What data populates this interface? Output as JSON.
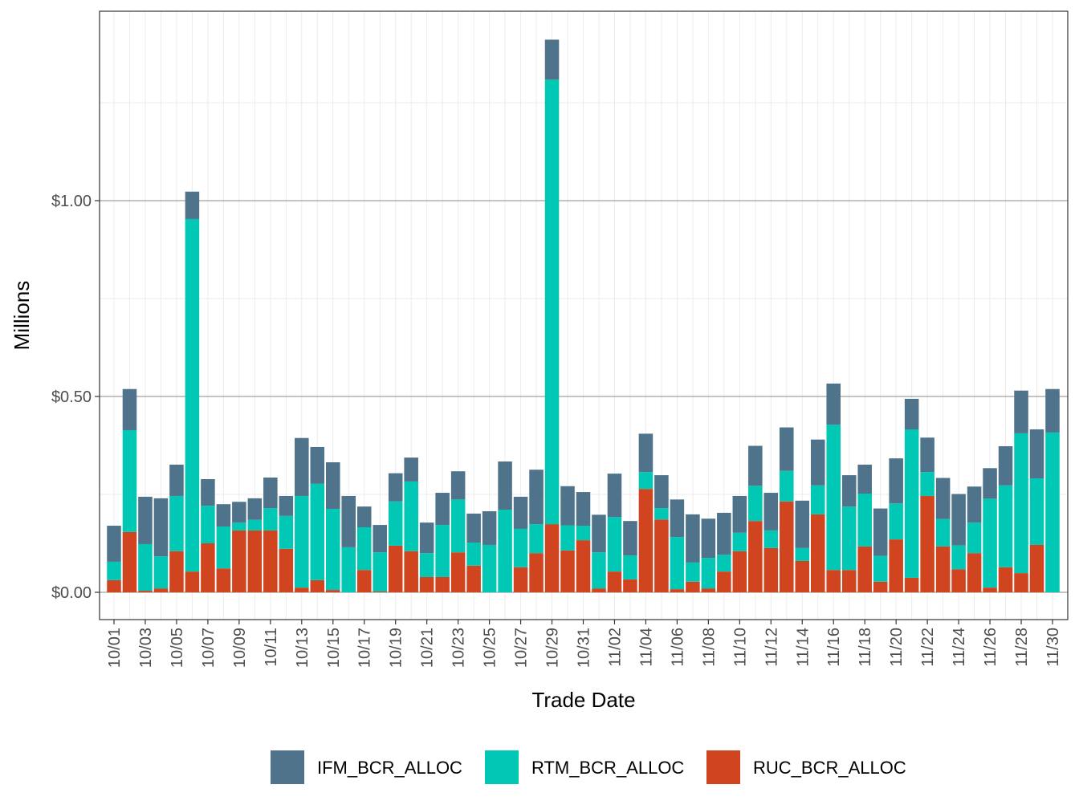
{
  "chart_data": {
    "type": "bar",
    "stacked": true,
    "xlabel": "Trade Date",
    "ylabel": "Millions",
    "ylim": [
      -0.07,
      1.485
    ],
    "y_ticks": [
      0,
      0.5,
      1.0
    ],
    "y_tick_labels": [
      "$0.00",
      "$0.50",
      "$1.00"
    ],
    "grid": true,
    "legend_position": "bottom",
    "categories": [
      "10/01",
      "10/02",
      "10/03",
      "10/04",
      "10/05",
      "10/06",
      "10/07",
      "10/08",
      "10/09",
      "10/10",
      "10/11",
      "10/12",
      "10/13",
      "10/14",
      "10/15",
      "10/16",
      "10/17",
      "10/18",
      "10/19",
      "10/20",
      "10/21",
      "10/22",
      "10/23",
      "10/24",
      "10/25",
      "10/26",
      "10/27",
      "10/28",
      "10/29",
      "10/30",
      "10/31",
      "11/01",
      "11/02",
      "11/03",
      "11/04",
      "11/05",
      "11/06",
      "11/07",
      "11/08",
      "11/09",
      "11/10",
      "11/11",
      "11/12",
      "11/13",
      "11/14",
      "11/15",
      "11/16",
      "11/17",
      "11/18",
      "11/19",
      "11/20",
      "11/21",
      "11/22",
      "11/23",
      "11/24",
      "11/25",
      "11/26",
      "11/27",
      "11/28",
      "11/29",
      "11/30"
    ],
    "x_tick_labels": [
      "10/01",
      "10/03",
      "10/05",
      "10/07",
      "10/09",
      "10/11",
      "10/13",
      "10/15",
      "10/17",
      "10/19",
      "10/21",
      "10/23",
      "10/25",
      "10/27",
      "10/29",
      "10/31",
      "11/02",
      "11/04",
      "11/06",
      "11/08",
      "11/10",
      "11/12",
      "11/14",
      "11/16",
      "11/18",
      "11/20",
      "11/22",
      "11/24",
      "11/26",
      "11/28",
      "11/30"
    ],
    "series": [
      {
        "name": "RUC_BCR_ALLOC",
        "color": "#D04520",
        "values": [
          0.031,
          0.154,
          0.004,
          0.01,
          0.105,
          0.053,
          0.125,
          0.061,
          0.158,
          0.158,
          0.158,
          0.111,
          0.012,
          0.031,
          0.006,
          0,
          0.057,
          0.002,
          0.119,
          0.105,
          0.039,
          0.039,
          0.102,
          0.068,
          0,
          0,
          0.064,
          0.1,
          0.174,
          0.107,
          0.133,
          0.01,
          0.053,
          0.033,
          0.264,
          0.186,
          0.008,
          0.027,
          0.01,
          0.053,
          0.105,
          0.182,
          0.113,
          0.232,
          0.08,
          0.199,
          0.057,
          0.057,
          0.117,
          0.027,
          0.135,
          0.037,
          0.246,
          0.117,
          0.059,
          0.1,
          0.012,
          0.064,
          0.049,
          0.121,
          0
        ]
      },
      {
        "name": "RTM_BCR_ALLOC",
        "color": "#00C8B4",
        "values": [
          0.047,
          0.26,
          0.119,
          0.082,
          0.141,
          0.9,
          0.096,
          0.107,
          0.02,
          0.027,
          0.057,
          0.084,
          0.234,
          0.246,
          0.207,
          0.115,
          0.109,
          0.1,
          0.113,
          0.178,
          0.061,
          0.133,
          0.135,
          0.059,
          0.121,
          0.211,
          0.098,
          0.074,
          1.135,
          0.064,
          0.037,
          0.092,
          0.139,
          0.061,
          0.043,
          0.029,
          0.133,
          0.049,
          0.078,
          0.043,
          0.047,
          0.09,
          0.045,
          0.078,
          0.033,
          0.074,
          0.371,
          0.162,
          0.135,
          0.066,
          0.092,
          0.379,
          0.061,
          0.07,
          0.061,
          0.078,
          0.227,
          0.209,
          0.357,
          0.17,
          0.408
        ]
      },
      {
        "name": "IFM_BCR_ALLOC",
        "color": "#4E738A",
        "values": [
          0.092,
          0.105,
          0.121,
          0.148,
          0.08,
          0.07,
          0.068,
          0.057,
          0.053,
          0.055,
          0.078,
          0.051,
          0.148,
          0.094,
          0.119,
          0.131,
          0.053,
          0.07,
          0.072,
          0.061,
          0.078,
          0.082,
          0.072,
          0.074,
          0.086,
          0.123,
          0.082,
          0.139,
          0.102,
          0.1,
          0.086,
          0.096,
          0.111,
          0.088,
          0.098,
          0.084,
          0.096,
          0.123,
          0.1,
          0.107,
          0.094,
          0.102,
          0.096,
          0.111,
          0.121,
          0.117,
          0.105,
          0.08,
          0.074,
          0.121,
          0.115,
          0.078,
          0.088,
          0.105,
          0.131,
          0.092,
          0.078,
          0.1,
          0.109,
          0.125,
          0.111
        ]
      }
    ],
    "legend_order": [
      "IFM_BCR_ALLOC",
      "RTM_BCR_ALLOC",
      "RUC_BCR_ALLOC"
    ]
  }
}
